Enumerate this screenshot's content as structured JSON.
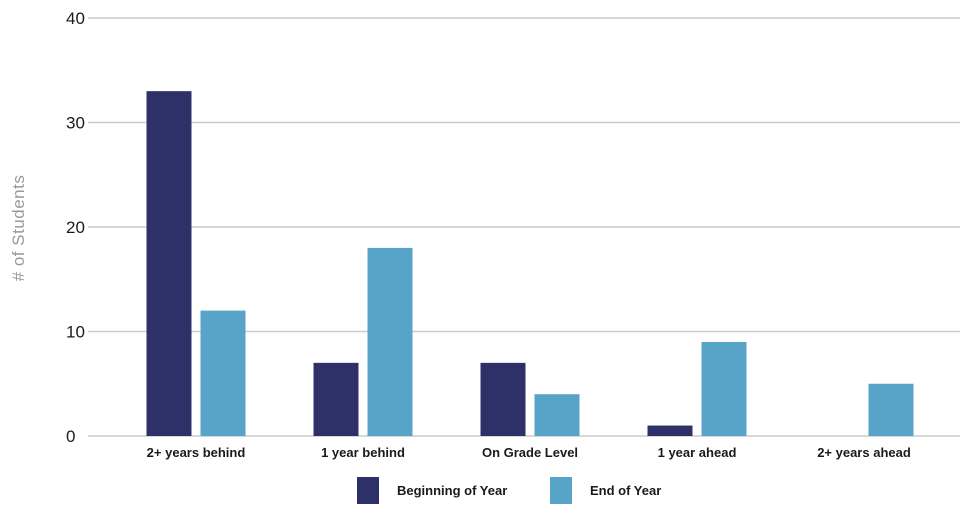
{
  "chart_data": {
    "type": "bar",
    "title": "",
    "xlabel": "",
    "ylabel": "# of Students",
    "ylim": [
      0,
      40
    ],
    "yticks": [
      0,
      10,
      20,
      30,
      40
    ],
    "grid": true,
    "legend_position": "bottom-center",
    "categories": [
      "2+ years behind",
      "1 year behind",
      "On Grade Level",
      "1 year ahead",
      "2+ years ahead"
    ],
    "series": [
      {
        "name": "Beginning of Year",
        "color": "#2d3168",
        "values": [
          33,
          7,
          7,
          1,
          0
        ]
      },
      {
        "name": "End of Year",
        "color": "#58a3c8",
        "values": [
          12,
          18,
          4,
          9,
          5
        ]
      }
    ]
  },
  "colors": {
    "gridline": "#cccccc",
    "ylabel_text": "#999999",
    "tick_text": "#1a1a1a"
  }
}
